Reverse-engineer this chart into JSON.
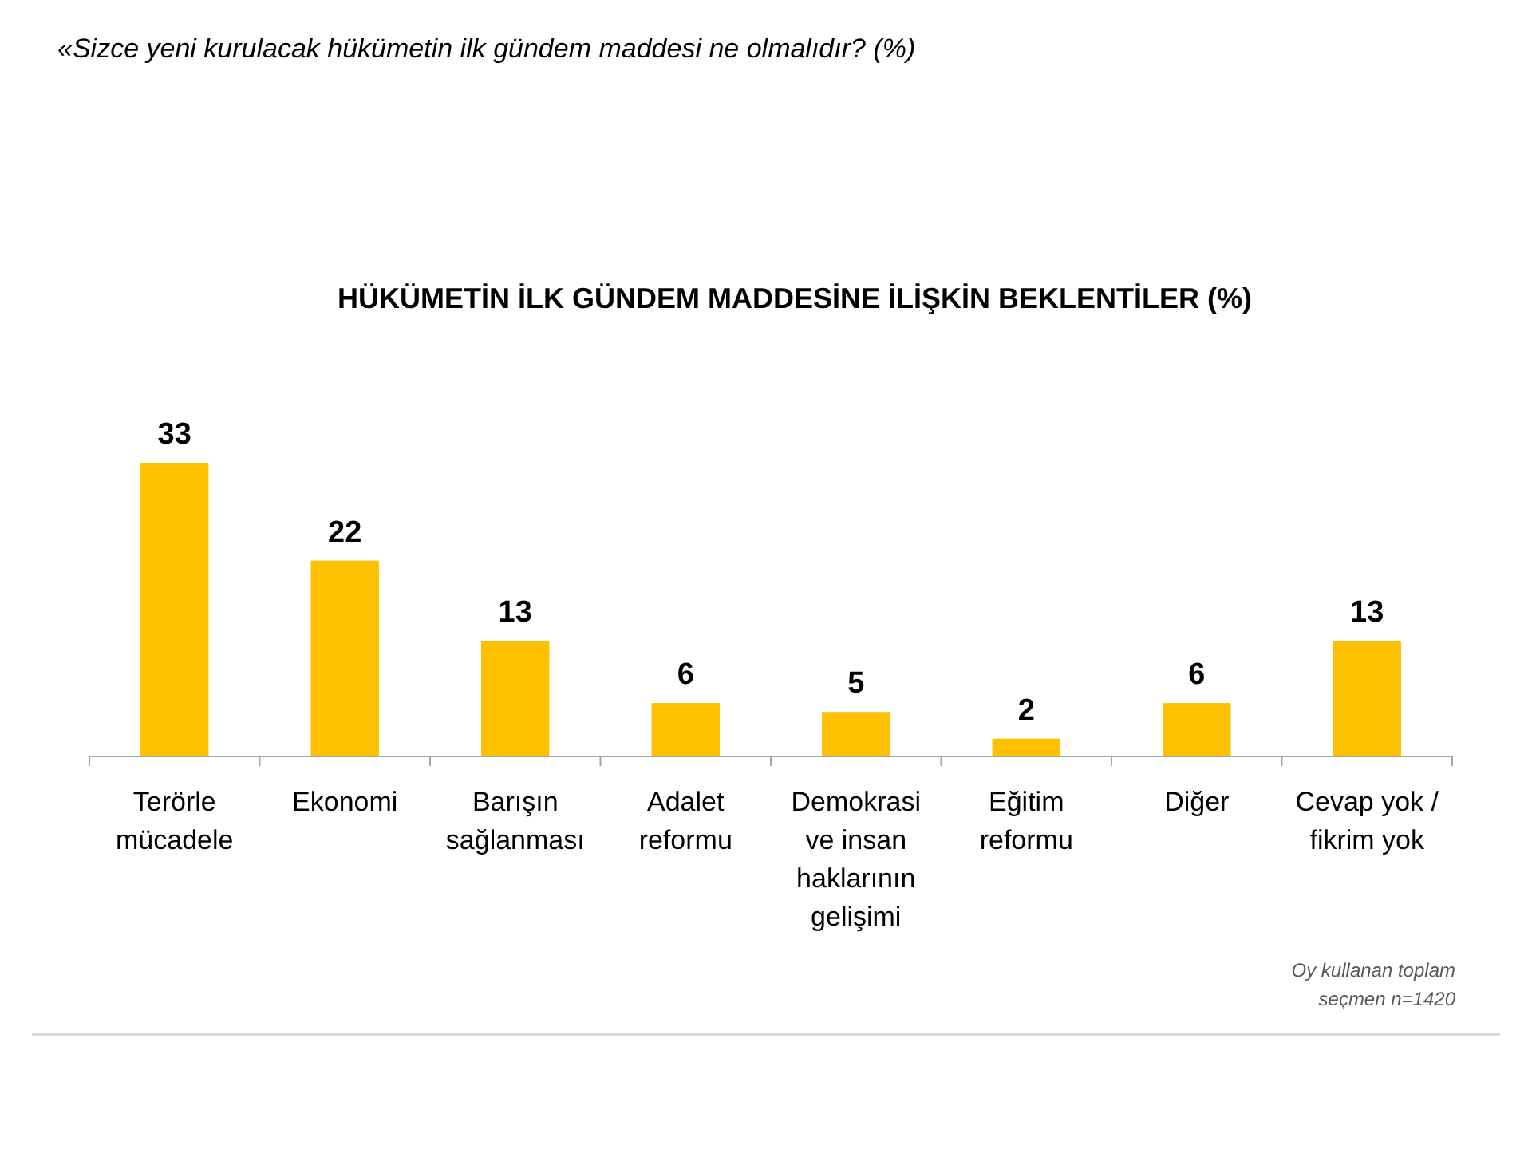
{
  "chart_data": {
    "type": "bar",
    "title": "HÜKÜMETİN İLK GÜNDEM MADDESİNE İLİŞKİN BEKLENTİLER (%)",
    "subtitle": "«Sizce yeni kurulacak hükümetin ilk gündem maddesi ne olmalıdır? (%)",
    "categories": [
      "Terörle mücadele",
      "Ekonomi",
      "Barışın sağlanması",
      "Adalet reformu",
      "Demokrasi ve insan haklarının gelişimi",
      "Eğitim reformu",
      "Diğer",
      "Cevap yok / fikrim yok"
    ],
    "values": [
      33,
      22,
      13,
      6,
      5,
      2,
      6,
      13
    ],
    "color": "#ffc000",
    "data_labels": true,
    "annotations": [
      "Oy kullanan toplam seçmen n=1420"
    ]
  }
}
